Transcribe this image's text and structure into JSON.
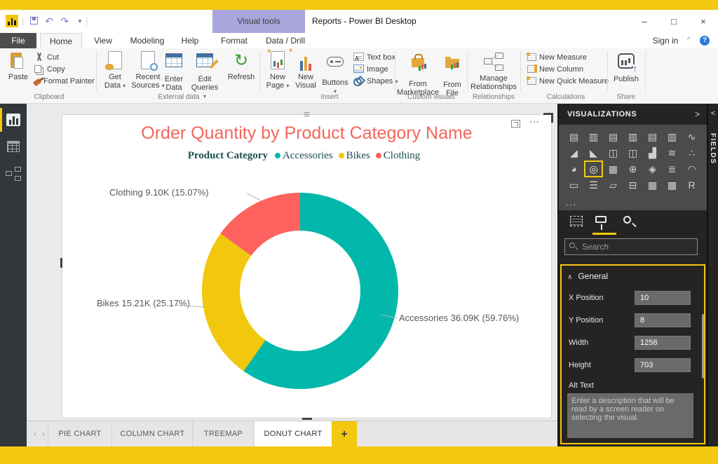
{
  "window": {
    "app_title": "Reports - Power BI Desktop",
    "contextual_tab": "Visual tools",
    "controls": {
      "minimize": "–",
      "maximize": "□",
      "close": "×"
    }
  },
  "menu": {
    "file": "File",
    "home": "Home",
    "view": "View",
    "modeling": "Modeling",
    "help": "Help",
    "format": "Format",
    "data_drill": "Data / Drill",
    "sign_in": "Sign in",
    "collapse_chevron": "^",
    "help_badge": "?"
  },
  "ribbon": {
    "clipboard": {
      "group": "Clipboard",
      "paste": "Paste",
      "cut": "Cut",
      "copy": "Copy",
      "format_painter": "Format Painter"
    },
    "external_data": {
      "group": "External data",
      "get_data": "Get Data",
      "recent_sources": "Recent Sources",
      "enter_data": "Enter Data",
      "edit_queries": "Edit Queries",
      "refresh": "Refresh"
    },
    "insert": {
      "group": "Insert",
      "new_page": "New Page",
      "new_visual": "New Visual",
      "buttons": "Buttons",
      "text_box": "Text box",
      "image": "Image",
      "shapes": "Shapes"
    },
    "custom_visuals": {
      "group": "Custom visuals",
      "from_marketplace": "From Marketplace",
      "from_file": "From File"
    },
    "relationships": {
      "group": "Relationships",
      "manage": "Manage Relationships"
    },
    "calculations": {
      "group": "Calculations",
      "new_measure": "New Measure",
      "new_column": "New Column",
      "new_quick_measure": "New Quick Measure"
    },
    "share": {
      "group": "Share",
      "publish": "Publish"
    }
  },
  "chart_data": {
    "type": "donut",
    "title": "Order Quantity by Product Category Name",
    "legend_title": "Product Category",
    "legend_position": "top-center",
    "categories": [
      "Accessories",
      "Bikes",
      "Clothing"
    ],
    "values": [
      36090,
      15210,
      9100
    ],
    "value_labels": [
      "36.09K",
      "15.21K",
      "9.10K"
    ],
    "percents": [
      59.76,
      25.17,
      15.07
    ],
    "colors": [
      "#01B8AA",
      "#F2C80F",
      "#FD625E"
    ],
    "slice_labels": [
      "Accessories 36.09K (59.76%)",
      "Bikes 15.21K (25.17%)",
      "Clothing 9.10K (15.07%)"
    ],
    "start_angle_deg": 0,
    "inner_radius_ratio": 0.62
  },
  "visualizations_panel": {
    "title": "VISUALIZATIONS",
    "expand_icon": ">",
    "ellipsis": "...",
    "search_placeholder": "Search",
    "icons": [
      {
        "name": "stacked-bar-chart",
        "glyph": "▤"
      },
      {
        "name": "stacked-column-chart",
        "glyph": "▥"
      },
      {
        "name": "clustered-bar-chart",
        "glyph": "▤"
      },
      {
        "name": "clustered-column-chart",
        "glyph": "▥"
      },
      {
        "name": "100-stacked-bar-chart",
        "glyph": "▤"
      },
      {
        "name": "100-stacked-column-chart",
        "glyph": "▥"
      },
      {
        "name": "line-chart",
        "glyph": "∿"
      },
      {
        "name": "area-chart",
        "glyph": "◢"
      },
      {
        "name": "stacked-area-chart",
        "glyph": "◣"
      },
      {
        "name": "line-stacked-column-chart",
        "glyph": "◫"
      },
      {
        "name": "line-clustered-column-chart",
        "glyph": "◫"
      },
      {
        "name": "waterfall-chart",
        "glyph": "▟"
      },
      {
        "name": "ribbon-chart",
        "glyph": "≋"
      },
      {
        "name": "scatter-chart",
        "glyph": "∴"
      },
      {
        "name": "pie-chart",
        "glyph": "◕"
      },
      {
        "name": "donut-chart",
        "glyph": "◎",
        "selected": true
      },
      {
        "name": "treemap",
        "glyph": "▦"
      },
      {
        "name": "map",
        "glyph": "⊕"
      },
      {
        "name": "filled-map",
        "glyph": "◈"
      },
      {
        "name": "funnel",
        "glyph": "≣"
      },
      {
        "name": "gauge",
        "glyph": "◠"
      },
      {
        "name": "card",
        "glyph": "▭"
      },
      {
        "name": "multi-row-card",
        "glyph": "☰"
      },
      {
        "name": "kpi",
        "glyph": "▱"
      },
      {
        "name": "slicer",
        "glyph": "⊟"
      },
      {
        "name": "table",
        "glyph": "▦"
      },
      {
        "name": "matrix",
        "glyph": "▩"
      },
      {
        "name": "r-script-visual",
        "glyph": "R"
      }
    ],
    "format": {
      "general_header": "General",
      "rows": [
        {
          "label": "X Position",
          "value": "10"
        },
        {
          "label": "Y Position",
          "value": "8"
        },
        {
          "label": "Width",
          "value": "1258"
        },
        {
          "label": "Height",
          "value": "703"
        }
      ],
      "alt_text_label": "Alt Text",
      "alt_text_placeholder": "Enter a description that will be read by a screen reader on selecting the visual."
    }
  },
  "fields_pane": {
    "label": "FIELDS",
    "collapse_icon": "<"
  },
  "page_tabs": {
    "prev": "‹",
    "next": "›",
    "tabs": [
      "PIE CHART",
      "COLUMN CHART",
      "TREEMAP",
      "DONUT CHART"
    ],
    "active": "DONUT CHART",
    "add_label": "+"
  },
  "accent_color": "#F2C811",
  "contextual_tab_color": "#A8A6DC"
}
